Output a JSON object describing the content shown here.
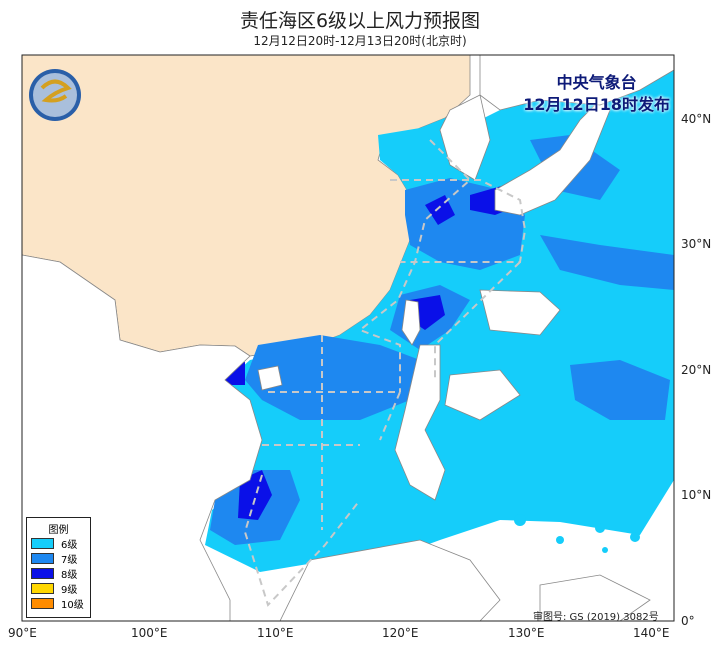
{
  "title": "责任海区6级以上风力预报图",
  "subtitle": "12月12日20时-12月13日20时(北京时)",
  "issuer": {
    "name": "中央气象台",
    "time": "12月12日18时发布"
  },
  "legend": {
    "title": "图例",
    "items": [
      {
        "label": "6级",
        "color": "#15cdfa"
      },
      {
        "label": "7级",
        "color": "#1e88f0"
      },
      {
        "label": "8级",
        "color": "#0a10e8"
      },
      {
        "label": "9级",
        "color": "#ffd700"
      },
      {
        "label": "10级",
        "color": "#ff8c00"
      }
    ]
  },
  "axes": {
    "lon": [
      "90°E",
      "100°E",
      "110°E",
      "120°E",
      "130°E",
      "140°E"
    ],
    "lat": [
      "0°",
      "10°N",
      "20°N",
      "30°N",
      "40°N"
    ]
  },
  "review_number": "审图号: GS (2019) 3082号",
  "colors": {
    "land_china": "#fbe5c8",
    "boundary": "#888888",
    "zone_line": "#c8c8c8"
  }
}
